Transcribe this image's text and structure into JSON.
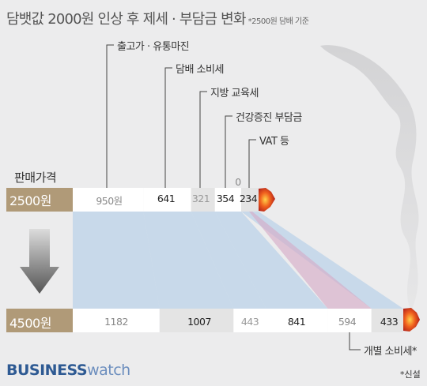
{
  "title": {
    "main": "담뱃값 2000원 인상 후 제세 · 부담금 변화",
    "note": "*2500원 담배 기준"
  },
  "section_label": "판매가격",
  "callouts": {
    "margin": "출고가 · 유통마진",
    "consumption_tax": "담배 소비세",
    "education_tax": "지방 교육세",
    "health_charge": "건강증진 부담금",
    "vat": "VAT 등",
    "individual_tax": "개별 소비세*"
  },
  "bar_before": {
    "price": "2500원",
    "segments": [
      {
        "label": "950원",
        "value": 950
      },
      {
        "label": "641",
        "value": 641
      },
      {
        "label": "321",
        "value": 321
      },
      {
        "label": "354",
        "value": 354
      },
      {
        "label": "234",
        "value": 234
      },
      {
        "label": "0",
        "value": 0
      }
    ]
  },
  "bar_after": {
    "price": "4500원",
    "segments": [
      {
        "label": "1182",
        "value": 1182
      },
      {
        "label": "1007",
        "value": 1007
      },
      {
        "label": "443",
        "value": 443
      },
      {
        "label": "841",
        "value": 841
      },
      {
        "label": "594",
        "value": 594
      },
      {
        "label": "433",
        "value": 433
      }
    ]
  },
  "colors": {
    "background": "#ececed",
    "filter": "#b09a78",
    "white_segment": "#ffffff",
    "gray_segment": "#e4e4e4",
    "blue_band": "#9dc3e6",
    "pink_band": "#d6a8c4",
    "arrow": "#6d6d6d",
    "logo": "#2e5a93"
  },
  "logo": {
    "bold": "BUSINESS",
    "light": "watch"
  },
  "source": "*신설"
}
